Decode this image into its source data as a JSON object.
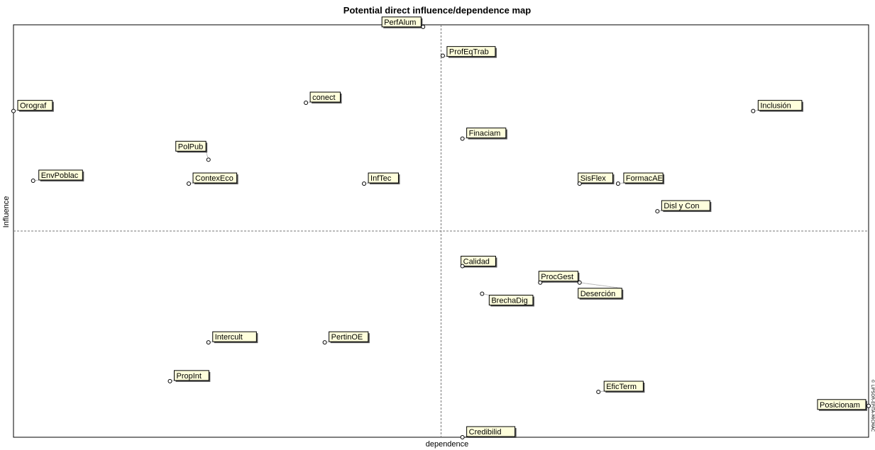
{
  "chart_data": {
    "type": "scatter",
    "title": "Potential direct influence/dependence map",
    "xlabel": "dependence",
    "ylabel": "Influence",
    "side_note": "© LIPSOR-EPITA-MICMAC",
    "axes_visible_ticks": false,
    "xlim": [
      0,
      100
    ],
    "ylim": [
      0,
      100
    ],
    "quadrant_split": {
      "x": 50,
      "y": 50
    },
    "points": [
      {
        "name": "PerfAlum",
        "x": 47.9,
        "y": 99.5
      },
      {
        "name": "ProfEqTrab",
        "x": 50.2,
        "y": 92.5
      },
      {
        "name": "conect",
        "x": 34.2,
        "y": 81.1
      },
      {
        "name": "Orograf",
        "x": 0.0,
        "y": 79.1
      },
      {
        "name": "Inclusión",
        "x": 86.5,
        "y": 79.1
      },
      {
        "name": "Finaciam",
        "x": 52.5,
        "y": 72.4
      },
      {
        "name": "PolPub",
        "x": 22.8,
        "y": 67.3
      },
      {
        "name": "EnvPoblac",
        "x": 2.3,
        "y": 62.2
      },
      {
        "name": "ContexEco",
        "x": 20.5,
        "y": 61.5
      },
      {
        "name": "InfTec",
        "x": 41.0,
        "y": 61.5
      },
      {
        "name": "SisFlex",
        "x": 66.2,
        "y": 61.5
      },
      {
        "name": "FormacAE",
        "x": 70.7,
        "y": 61.5
      },
      {
        "name": "Disl y Con",
        "x": 75.3,
        "y": 54.8
      },
      {
        "name": "Calidad",
        "x": 52.5,
        "y": 41.5
      },
      {
        "name": "ProcGest",
        "x": 61.6,
        "y": 37.5
      },
      {
        "name": "Deserción",
        "x": 66.2,
        "y": 37.5
      },
      {
        "name": "BrechaDig",
        "x": 54.8,
        "y": 34.8
      },
      {
        "name": "Intercult",
        "x": 22.8,
        "y": 23.0
      },
      {
        "name": "PertinOE",
        "x": 36.4,
        "y": 23.0
      },
      {
        "name": "PropInt",
        "x": 18.3,
        "y": 13.6
      },
      {
        "name": "EficTerm",
        "x": 68.4,
        "y": 11.0
      },
      {
        "name": "Posicionam",
        "x": 100.0,
        "y": 7.6
      },
      {
        "name": "Credibilid",
        "x": 52.5,
        "y": 0.0
      }
    ]
  }
}
